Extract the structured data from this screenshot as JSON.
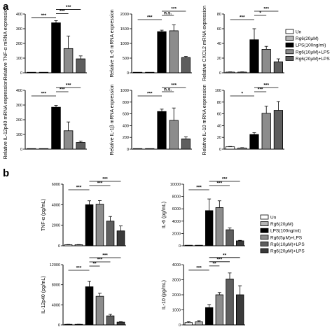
{
  "panel_labels": [
    "a",
    "b"
  ],
  "colors": {
    "0": "#ffffff",
    "1": "#b5b5b5",
    "2": "#000000",
    "3": "#8c8c8c",
    "4": "#5e5e5e",
    "5": "#3a3a3a"
  },
  "legends": {
    "a": [
      "Un",
      "Rg6(20μM)",
      "LPS(100ng/ml)",
      "Rg6(10μM)+LPS",
      "Rg6(20μM)+LPS"
    ],
    "b": [
      "Un",
      "Rg6(20μM)",
      "LPS(100ng/ml)",
      "Rg6(5μM)+LPS",
      "Rg6(10μM)+LPS",
      "Rg6(20μM)+LPS"
    ]
  },
  "chart_data": [
    {
      "type": "bar",
      "panel": "a",
      "ylabel": "Relative TNF-α mRNA expression",
      "ylim": [
        0,
        400
      ],
      "yticks": [
        0,
        100,
        200,
        300,
        400
      ],
      "values": [
        1,
        2,
        340,
        165,
        95
      ],
      "errors": [
        0.5,
        0.5,
        15,
        85,
        20
      ],
      "annotations": [
        {
          "from": 0,
          "to": 2,
          "level": 1,
          "text": "***"
        },
        {
          "from": 2,
          "to": 3,
          "level": 2,
          "text": "***"
        },
        {
          "from": 2,
          "to": 4,
          "level": 3,
          "text": "***"
        }
      ]
    },
    {
      "type": "bar",
      "panel": "a",
      "ylabel": "Relative IL-6 mRNA expression",
      "ylim": [
        0,
        2000
      ],
      "yticks": [
        0,
        500,
        1000,
        1500,
        2000
      ],
      "values": [
        1,
        1,
        1400,
        1430,
        520
      ],
      "errors": [
        0.5,
        0.5,
        50,
        200,
        40
      ],
      "annotations": [
        {
          "from": 0,
          "to": 2,
          "level": 1,
          "text": "***"
        },
        {
          "from": 2,
          "to": 3,
          "level": 2,
          "text": "n.s."
        },
        {
          "from": 2,
          "to": 4,
          "level": 3,
          "text": "***"
        }
      ]
    },
    {
      "type": "bar",
      "panel": "a",
      "ylabel": "Relative CXCL2 mRNA expression",
      "ylim": [
        0,
        80
      ],
      "yticks": [
        0,
        20,
        40,
        60,
        80
      ],
      "values": [
        1,
        1,
        45,
        32,
        15
      ],
      "errors": [
        0.3,
        0.3,
        15,
        4,
        4
      ],
      "annotations": [
        {
          "from": 0,
          "to": 2,
          "level": 1,
          "text": "***"
        },
        {
          "from": 2,
          "to": 3,
          "level": 2,
          "text": "*"
        },
        {
          "from": 2,
          "to": 4,
          "level": 3,
          "text": "***"
        }
      ]
    },
    {
      "type": "bar",
      "panel": "a",
      "ylabel": "Relative IL-12p40 mRNA expression",
      "ylim": [
        0,
        400
      ],
      "yticks": [
        0,
        100,
        200,
        300,
        400
      ],
      "values": [
        1,
        1,
        285,
        125,
        45
      ],
      "errors": [
        0.5,
        0.5,
        12,
        60,
        10
      ],
      "annotations": [
        {
          "from": 0,
          "to": 2,
          "level": 1,
          "text": "***"
        },
        {
          "from": 2,
          "to": 3,
          "level": 2,
          "text": "***"
        },
        {
          "from": 2,
          "to": 4,
          "level": 3,
          "text": "***"
        }
      ]
    },
    {
      "type": "bar",
      "panel": "a",
      "ylabel": "Relative IL-1β mRNA expression",
      "ylim": [
        0,
        1000
      ],
      "yticks": [
        0,
        200,
        400,
        600,
        800,
        1000
      ],
      "values": [
        1,
        1,
        640,
        490,
        175
      ],
      "errors": [
        0.5,
        0.5,
        40,
        210,
        35
      ],
      "annotations": [
        {
          "from": 0,
          "to": 2,
          "level": 1,
          "text": "***"
        },
        {
          "from": 2,
          "to": 3,
          "level": 2,
          "text": "n.s."
        },
        {
          "from": 2,
          "to": 4,
          "level": 3,
          "text": "***"
        }
      ]
    },
    {
      "type": "bar",
      "panel": "a",
      "ylabel": "Relative IL-10 mRNA expression",
      "ylim": [
        0,
        100
      ],
      "yticks": [
        0,
        20,
        40,
        60,
        80,
        100
      ],
      "values": [
        4,
        2,
        25,
        61,
        66
      ],
      "errors": [
        0.5,
        0.5,
        3,
        12,
        15
      ],
      "annotations": [
        {
          "from": 0,
          "to": 2,
          "level": 1,
          "text": "*"
        },
        {
          "from": 2,
          "to": 3,
          "level": 2,
          "text": "***"
        },
        {
          "from": 2,
          "to": 4,
          "level": 3,
          "text": "***"
        }
      ]
    },
    {
      "type": "bar",
      "panel": "b",
      "ylabel": "TNF-α (pg/mL)",
      "ylim": [
        0,
        6000
      ],
      "yticks": [
        0,
        2000,
        4000,
        6000
      ],
      "values": [
        100,
        100,
        4000,
        4050,
        2400,
        1450
      ],
      "errors": [
        20,
        20,
        380,
        350,
        450,
        480
      ],
      "annotations": [
        {
          "from": 0,
          "to": 2,
          "level": 1,
          "text": "***"
        },
        {
          "from": 2,
          "to": 4,
          "level": 2,
          "text": "***"
        },
        {
          "from": 2,
          "to": 5,
          "level": 3,
          "text": "***"
        }
      ]
    },
    {
      "type": "bar",
      "panel": "b",
      "ylabel": "IL-6 (pg/mL)",
      "ylim": [
        0,
        10000
      ],
      "yticks": [
        0,
        2000,
        4000,
        6000,
        8000,
        10000
      ],
      "values": [
        50,
        50,
        5700,
        6200,
        2600,
        800
      ],
      "errors": [
        20,
        20,
        1900,
        1100,
        300,
        80
      ],
      "annotations": [
        {
          "from": 0,
          "to": 2,
          "level": 1,
          "text": "***"
        },
        {
          "from": 2,
          "to": 4,
          "level": 2,
          "text": "***"
        },
        {
          "from": 2,
          "to": 5,
          "level": 3,
          "text": "***"
        }
      ]
    },
    {
      "type": "bar",
      "panel": "b",
      "ylabel": "IL-12p40 (pg/mL)",
      "ylim": [
        0,
        12000
      ],
      "yticks": [
        0,
        4000,
        8000,
        12000
      ],
      "values": [
        100,
        100,
        7600,
        5700,
        1800,
        550
      ],
      "errors": [
        30,
        30,
        1100,
        600,
        300,
        100
      ],
      "annotations": [
        {
          "from": 0,
          "to": 2,
          "level": 1,
          "text": "***"
        },
        {
          "from": 2,
          "to": 3,
          "level": 2,
          "text": "**"
        },
        {
          "from": 2,
          "to": 4,
          "level": 3,
          "text": "***"
        },
        {
          "from": 2,
          "to": 5,
          "level": 4,
          "text": "***"
        }
      ]
    },
    {
      "type": "bar",
      "panel": "b",
      "ylabel": "IL-10 (pg/mL)",
      "ylim": [
        0,
        4000
      ],
      "yticks": [
        0,
        1000,
        2000,
        3000,
        4000
      ],
      "values": [
        150,
        200,
        1150,
        2000,
        3050,
        2000
      ],
      "errors": [
        60,
        80,
        200,
        150,
        400,
        600
      ],
      "annotations": [
        {
          "from": 0,
          "to": 2,
          "level": 1,
          "text": "***"
        },
        {
          "from": 2,
          "to": 3,
          "level": 2,
          "text": "**"
        },
        {
          "from": 2,
          "to": 4,
          "level": 3,
          "text": "***"
        },
        {
          "from": 2,
          "to": 5,
          "level": 4,
          "text": "**"
        }
      ]
    }
  ]
}
